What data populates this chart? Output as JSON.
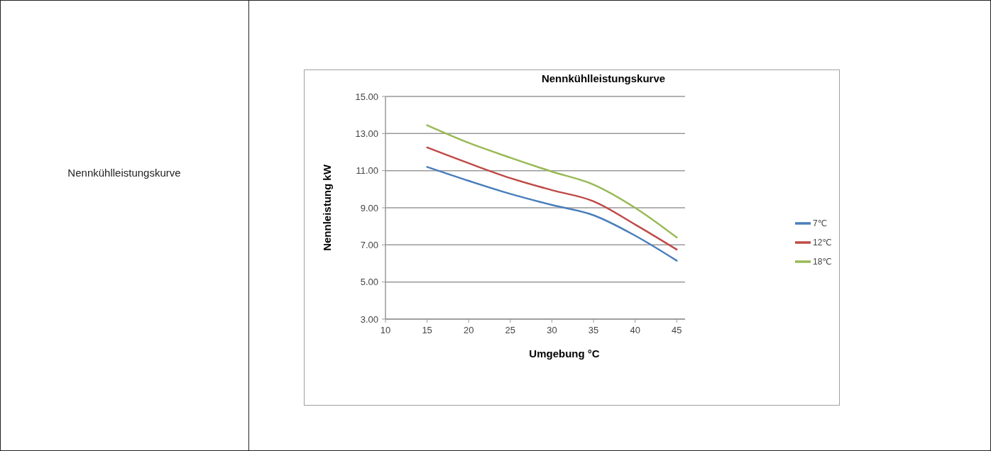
{
  "chart_data": {
    "type": "line",
    "title": "Nennkühlleistungskurve",
    "xlabel": "Umgebung °C",
    "ylabel": "Nennleistung kW",
    "annotations": [
      "Nennkühlleistungskurve"
    ],
    "x": [
      15,
      20,
      25,
      30,
      35,
      40,
      45
    ],
    "series": [
      {
        "name": "7℃",
        "color": "#4a7ebb",
        "values": [
          11.2,
          10.45,
          9.75,
          9.15,
          8.6,
          7.5,
          6.15
        ]
      },
      {
        "name": "12℃",
        "color": "#be4b48",
        "values": [
          12.25,
          11.4,
          10.6,
          9.95,
          9.35,
          8.1,
          6.75
        ]
      },
      {
        "name": "18℃",
        "color": "#98b954",
        "values": [
          13.45,
          12.5,
          11.7,
          10.95,
          10.25,
          9.0,
          7.4
        ]
      }
    ],
    "xlim": [
      10,
      46
    ],
    "xticks": [
      10,
      15,
      20,
      25,
      30,
      35,
      40,
      45
    ],
    "ylim": [
      3,
      15
    ],
    "yticks": [
      {
        "value": 3,
        "label": "3.00"
      },
      {
        "value": 5,
        "label": "5.00"
      },
      {
        "value": 7,
        "label": "7.00"
      },
      {
        "value": 9,
        "label": "9.00"
      },
      {
        "value": 11,
        "label": "11.00"
      },
      {
        "value": 13,
        "label": "13.00"
      },
      {
        "value": 15,
        "label": "15.00"
      }
    ],
    "grid": "y",
    "legend": "right",
    "marker": "none",
    "line_style": "solid"
  }
}
